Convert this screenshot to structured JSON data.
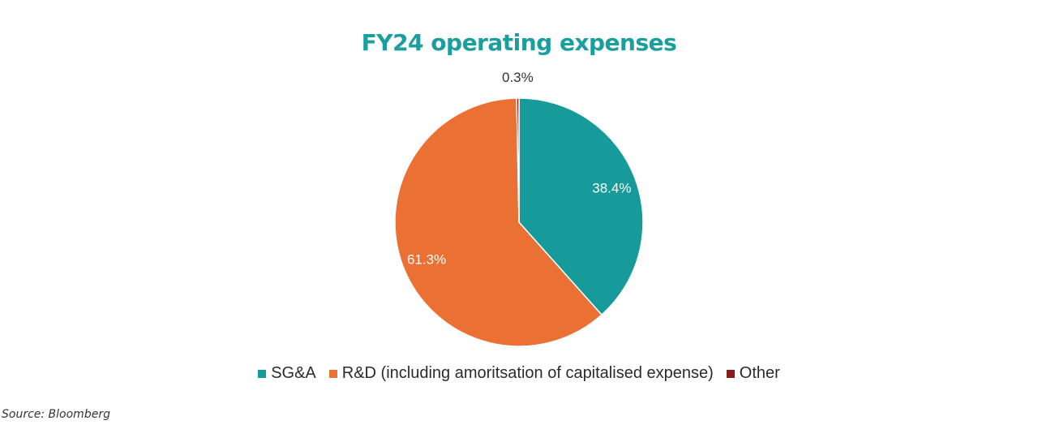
{
  "chart_data": {
    "type": "pie",
    "title": "FY24 operating expenses",
    "categories": [
      "SG&A",
      "R&D (including amoritsation of capitalised expense)",
      "Other"
    ],
    "values": [
      38.4,
      61.3,
      0.3
    ],
    "labels": [
      "38.4%",
      "61.3%",
      "0.3%"
    ],
    "colors": [
      "#169a9a",
      "#eb7033",
      "#8b1a1a"
    ],
    "start_angle_deg": 0,
    "direction": "clockwise",
    "legend_position": "bottom"
  },
  "title_color": "#1a9e9e",
  "source": "Source: Bloomberg"
}
